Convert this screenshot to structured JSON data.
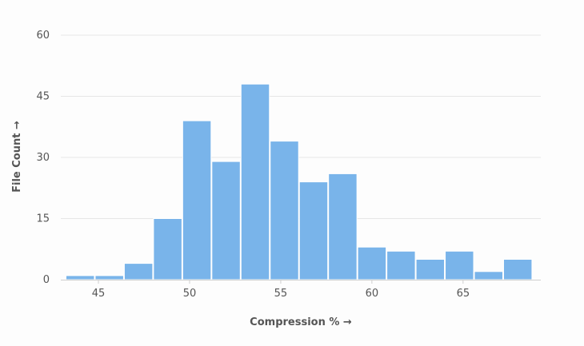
{
  "chart_data": {
    "type": "bar",
    "subtype": "histogram",
    "xlabel": "Compression % →",
    "ylabel": "File Count →",
    "xlim": [
      43.2,
      69
    ],
    "ylim": [
      0,
      60
    ],
    "x_ticks": [
      45,
      50,
      55,
      60,
      65
    ],
    "y_ticks": [
      0,
      15,
      30,
      45,
      60
    ],
    "bins": [
      {
        "x0": 43.2,
        "x1": 44.8,
        "count": 1
      },
      {
        "x0": 44.8,
        "x1": 46.4,
        "count": 1
      },
      {
        "x0": 46.4,
        "x1": 48.0,
        "count": 4
      },
      {
        "x0": 48.0,
        "x1": 49.6,
        "count": 15
      },
      {
        "x0": 49.6,
        "x1": 51.2,
        "count": 39
      },
      {
        "x0": 51.2,
        "x1": 52.8,
        "count": 29
      },
      {
        "x0": 52.8,
        "x1": 54.4,
        "count": 48
      },
      {
        "x0": 54.4,
        "x1": 56.0,
        "count": 34
      },
      {
        "x0": 56.0,
        "x1": 57.6,
        "count": 24
      },
      {
        "x0": 57.6,
        "x1": 59.2,
        "count": 26
      },
      {
        "x0": 59.2,
        "x1": 60.8,
        "count": 8
      },
      {
        "x0": 60.8,
        "x1": 62.4,
        "count": 7
      },
      {
        "x0": 62.4,
        "x1": 64.0,
        "count": 5
      },
      {
        "x0": 64.0,
        "x1": 65.6,
        "count": 7
      },
      {
        "x0": 65.6,
        "x1": 67.2,
        "count": 2
      },
      {
        "x0": 67.2,
        "x1": 68.8,
        "count": 5
      }
    ],
    "grid": true,
    "legend": "none",
    "colors": {
      "bar": "#79b4ea",
      "grid": "#e6e6e6",
      "text": "#555555"
    }
  }
}
